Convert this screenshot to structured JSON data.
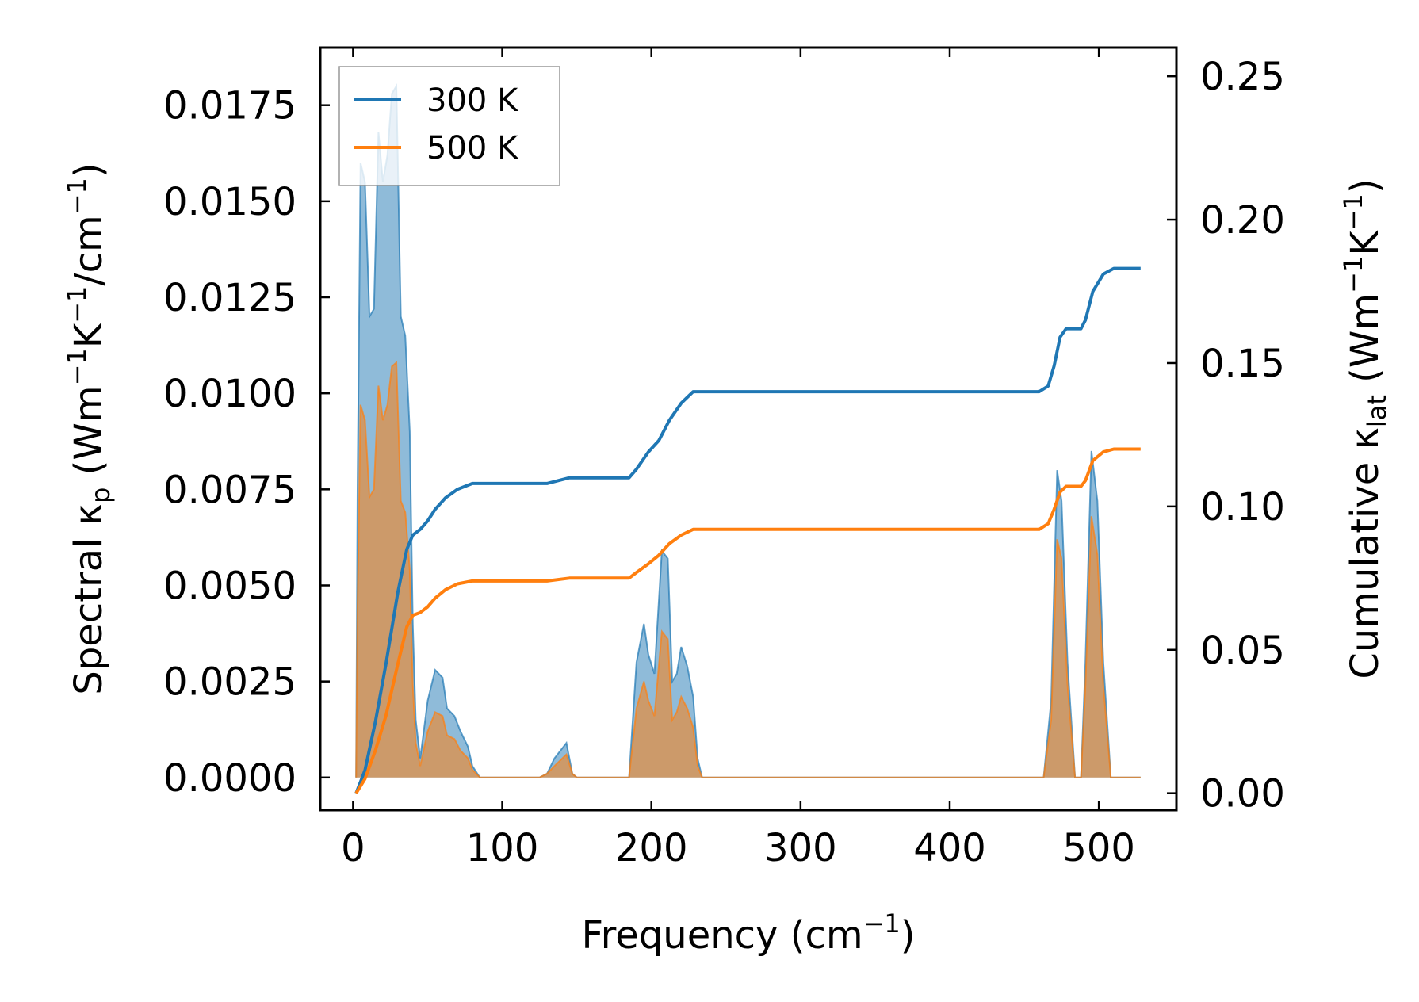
{
  "chart_data": {
    "type": "line",
    "title": "",
    "xlabel": "Frequency (cm",
    "xlabel_sup": "−1",
    "xlabel_end": ")",
    "ylabel_left": {
      "prefix": "Spectral κ",
      "sub": "p",
      "mid1": " (Wm",
      "sup1": "−1",
      "mid2": "K",
      "sup2": "−1",
      "mid3": "/cm",
      "sup3": "−1",
      "end": ")"
    },
    "ylabel_right": {
      "prefix": "Cumulative κ",
      "sub": "lat",
      "mid1": " (Wm",
      "sup1": "−1",
      "mid2": "K",
      "sup2": "−1",
      "end": ")"
    },
    "xlim": [
      -22,
      552
    ],
    "ylim_left": [
      -0.00085,
      0.019
    ],
    "ylim_right": [
      -0.0059,
      0.26
    ],
    "x_ticks": [
      0,
      100,
      200,
      300,
      400,
      500
    ],
    "x_tick_labels": [
      "0",
      "100",
      "200",
      "300",
      "400",
      "500"
    ],
    "left_ticks": [
      0,
      0.0025,
      0.005,
      0.0075,
      0.01,
      0.0125,
      0.015,
      0.0175
    ],
    "left_tick_labels": [
      "0.0000",
      "0.0025",
      "0.0050",
      "0.0075",
      "0.0100",
      "0.0125",
      "0.0150",
      "0.0175"
    ],
    "right_ticks": [
      0,
      0.05,
      0.1,
      0.15,
      0.2,
      0.25
    ],
    "right_tick_labels": [
      "0.00",
      "0.05",
      "0.10",
      "0.15",
      "0.20",
      "0.25"
    ],
    "legend_position": "top-left",
    "series": [
      {
        "name": "300 K",
        "color": "#1f77b4",
        "spectral_axis": "left",
        "spectral": [
          [
            2,
            0
          ],
          [
            3,
            0.0075
          ],
          [
            5,
            0.016
          ],
          [
            8,
            0.0155
          ],
          [
            11,
            0.012
          ],
          [
            14,
            0.0122
          ],
          [
            17,
            0.0168
          ],
          [
            20,
            0.0155
          ],
          [
            23,
            0.0162
          ],
          [
            26,
            0.0178
          ],
          [
            29,
            0.018
          ],
          [
            32,
            0.012
          ],
          [
            35,
            0.0115
          ],
          [
            38,
            0.009
          ],
          [
            40,
            0.004
          ],
          [
            42,
            0.0015
          ],
          [
            45,
            0.0005
          ],
          [
            50,
            0.002
          ],
          [
            55,
            0.0028
          ],
          [
            60,
            0.0026
          ],
          [
            63,
            0.0018
          ],
          [
            68,
            0.0016
          ],
          [
            72,
            0.0012
          ],
          [
            77,
            0.0008
          ],
          [
            80,
            0.0003
          ],
          [
            85,
            0
          ],
          [
            125,
            0
          ],
          [
            130,
            0.0001
          ],
          [
            135,
            0.0005
          ],
          [
            143,
            0.0009
          ],
          [
            147,
            0.0001
          ],
          [
            150,
            0
          ],
          [
            185,
            0
          ],
          [
            190,
            0.003
          ],
          [
            195,
            0.004
          ],
          [
            198,
            0.0032
          ],
          [
            202,
            0.0027
          ],
          [
            207,
            0.0059
          ],
          [
            211,
            0.0057
          ],
          [
            214,
            0.0025
          ],
          [
            217,
            0.0027
          ],
          [
            220,
            0.0034
          ],
          [
            224,
            0.0029
          ],
          [
            228,
            0.0021
          ],
          [
            231,
            0.0005
          ],
          [
            234,
            0
          ],
          [
            463,
            0
          ],
          [
            468,
            0.002
          ],
          [
            472,
            0.008
          ],
          [
            475,
            0.0072
          ],
          [
            479,
            0.003
          ],
          [
            484,
            0
          ],
          [
            488,
            0
          ],
          [
            491,
            0.003
          ],
          [
            495,
            0.0085
          ],
          [
            499,
            0.0072
          ],
          [
            503,
            0.003
          ],
          [
            508,
            0
          ],
          [
            528,
            0
          ]
        ],
        "cumulative_axis": "right",
        "cumulative": [
          [
            2,
            0
          ],
          [
            8,
            0.008
          ],
          [
            15,
            0.025
          ],
          [
            22,
            0.045
          ],
          [
            30,
            0.07
          ],
          [
            36,
            0.085
          ],
          [
            40,
            0.09
          ],
          [
            45,
            0.092
          ],
          [
            50,
            0.095
          ],
          [
            55,
            0.099
          ],
          [
            62,
            0.103
          ],
          [
            70,
            0.106
          ],
          [
            80,
            0.108
          ],
          [
            90,
            0.108
          ],
          [
            130,
            0.108
          ],
          [
            145,
            0.11
          ],
          [
            185,
            0.11
          ],
          [
            190,
            0.113
          ],
          [
            198,
            0.119
          ],
          [
            205,
            0.123
          ],
          [
            212,
            0.13
          ],
          [
            220,
            0.136
          ],
          [
            228,
            0.14
          ],
          [
            460,
            0.14
          ],
          [
            466,
            0.142
          ],
          [
            470,
            0.149
          ],
          [
            474,
            0.159
          ],
          [
            478,
            0.162
          ],
          [
            488,
            0.162
          ],
          [
            491,
            0.165
          ],
          [
            496,
            0.175
          ],
          [
            503,
            0.181
          ],
          [
            510,
            0.183
          ],
          [
            528,
            0.183
          ]
        ]
      },
      {
        "name": "500 K",
        "color": "#ff7f0e",
        "spectral_axis": "left",
        "spectral": [
          [
            2,
            0
          ],
          [
            3,
            0.0045
          ],
          [
            5,
            0.0097
          ],
          [
            8,
            0.0093
          ],
          [
            11,
            0.0073
          ],
          [
            14,
            0.0075
          ],
          [
            17,
            0.0102
          ],
          [
            20,
            0.0093
          ],
          [
            23,
            0.0097
          ],
          [
            26,
            0.0107
          ],
          [
            29,
            0.0108
          ],
          [
            32,
            0.0072
          ],
          [
            35,
            0.0069
          ],
          [
            38,
            0.0054
          ],
          [
            40,
            0.0024
          ],
          [
            42,
            0.0009
          ],
          [
            45,
            0.0003
          ],
          [
            50,
            0.0012
          ],
          [
            55,
            0.0017
          ],
          [
            60,
            0.0016
          ],
          [
            63,
            0.0011
          ],
          [
            68,
            0.001
          ],
          [
            72,
            0.0007
          ],
          [
            77,
            0.0005
          ],
          [
            80,
            0.0002
          ],
          [
            85,
            0
          ],
          [
            125,
            0
          ],
          [
            130,
            0.0001
          ],
          [
            135,
            0.0003
          ],
          [
            143,
            0.0006
          ],
          [
            147,
            0.0001
          ],
          [
            150,
            0
          ],
          [
            185,
            0
          ],
          [
            190,
            0.0018
          ],
          [
            195,
            0.0025
          ],
          [
            198,
            0.002
          ],
          [
            202,
            0.0016
          ],
          [
            207,
            0.0038
          ],
          [
            211,
            0.0036
          ],
          [
            214,
            0.0015
          ],
          [
            217,
            0.0017
          ],
          [
            220,
            0.0021
          ],
          [
            224,
            0.0018
          ],
          [
            228,
            0.0013
          ],
          [
            231,
            0.0003
          ],
          [
            234,
            0
          ],
          [
            463,
            0
          ],
          [
            468,
            0.0015
          ],
          [
            472,
            0.0062
          ],
          [
            475,
            0.0057
          ],
          [
            479,
            0.0024
          ],
          [
            484,
            0
          ],
          [
            488,
            0
          ],
          [
            491,
            0.0024
          ],
          [
            495,
            0.0068
          ],
          [
            499,
            0.0058
          ],
          [
            503,
            0.0024
          ],
          [
            508,
            0
          ],
          [
            528,
            0
          ]
        ],
        "cumulative_axis": "right",
        "cumulative": [
          [
            2,
            0
          ],
          [
            8,
            0.005
          ],
          [
            15,
            0.015
          ],
          [
            22,
            0.027
          ],
          [
            30,
            0.045
          ],
          [
            36,
            0.058
          ],
          [
            40,
            0.062
          ],
          [
            45,
            0.063
          ],
          [
            50,
            0.065
          ],
          [
            55,
            0.068
          ],
          [
            62,
            0.071
          ],
          [
            70,
            0.073
          ],
          [
            80,
            0.074
          ],
          [
            90,
            0.074
          ],
          [
            130,
            0.074
          ],
          [
            145,
            0.075
          ],
          [
            185,
            0.075
          ],
          [
            190,
            0.077
          ],
          [
            198,
            0.08
          ],
          [
            205,
            0.083
          ],
          [
            212,
            0.087
          ],
          [
            220,
            0.09
          ],
          [
            228,
            0.092
          ],
          [
            460,
            0.092
          ],
          [
            466,
            0.094
          ],
          [
            470,
            0.099
          ],
          [
            474,
            0.105
          ],
          [
            478,
            0.107
          ],
          [
            488,
            0.107
          ],
          [
            491,
            0.109
          ],
          [
            496,
            0.116
          ],
          [
            503,
            0.119
          ],
          [
            510,
            0.12
          ],
          [
            528,
            0.12
          ]
        ]
      }
    ]
  }
}
